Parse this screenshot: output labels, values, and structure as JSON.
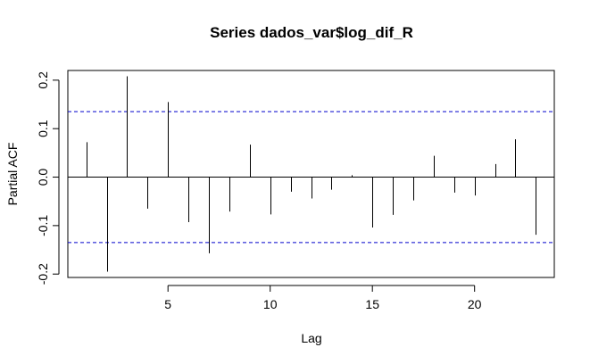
{
  "chart_data": {
    "type": "bar",
    "title": "Series  dados_var$log_dif_R",
    "xlabel": "Lag",
    "ylabel": "Partial ACF",
    "x": [
      1,
      2,
      3,
      4,
      5,
      6,
      7,
      8,
      9,
      10,
      11,
      12,
      13,
      14,
      15,
      16,
      17,
      18,
      19,
      20,
      21,
      22,
      23
    ],
    "values": [
      0.072,
      -0.195,
      0.208,
      -0.065,
      0.155,
      -0.093,
      -0.157,
      -0.071,
      0.067,
      -0.077,
      -0.03,
      -0.044,
      -0.026,
      0.004,
      -0.104,
      -0.078,
      -0.048,
      0.044,
      -0.032,
      -0.038,
      0.027,
      0.078,
      -0.119
    ],
    "xlim": [
      0.1,
      23.9
    ],
    "ylim": [
      -0.207,
      0.22
    ],
    "x_ticks": [
      5,
      10,
      15,
      20
    ],
    "x_tick_labels": [
      "5",
      "10",
      "15",
      "20"
    ],
    "y_ticks": [
      -0.2,
      -0.1,
      0.0,
      0.1,
      0.2
    ],
    "y_tick_labels": [
      "-0.2",
      "-0.1",
      "0.0",
      "0.1",
      "0.2"
    ],
    "confidence_bounds": [
      0.135,
      -0.135
    ],
    "confidence_color": "#0000cc",
    "bar_color": "#000000",
    "grid": false
  }
}
